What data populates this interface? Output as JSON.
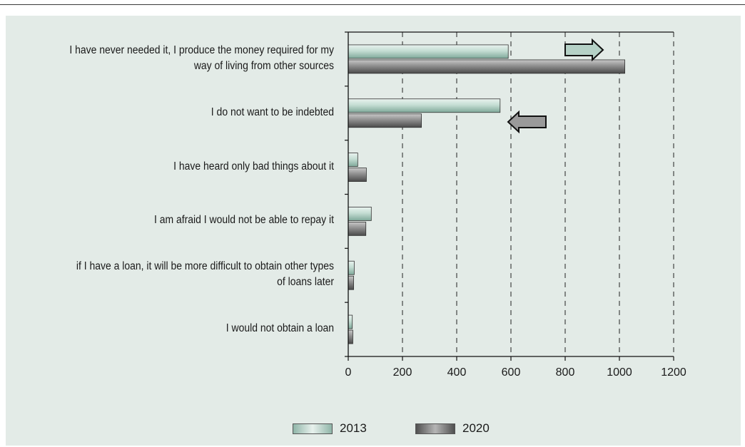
{
  "chart_data": {
    "type": "bar",
    "orientation": "horizontal",
    "categories": [
      "I have never needed it, I produce the money required for my way of living from other sources",
      "I do not want to be indebted",
      "I have heard only bad things about it",
      "I am afraid I would not be able to repay it",
      "if I have a loan, it will be more difficult to obtain other types of loans later",
      "I would not obtain a loan"
    ],
    "category_lines": [
      [
        "I have never needed it, I produce the money required for my",
        "way of living from other sources"
      ],
      [
        "I do not want to be indebted"
      ],
      [
        "I have heard only bad things about it"
      ],
      [
        "I am afraid I would not be able to repay it"
      ],
      [
        "if I have a loan, it will be more difficult to obtain other types",
        "of loans later"
      ],
      [
        "I would not obtain a loan"
      ]
    ],
    "series": [
      {
        "name": "2013",
        "values": [
          590,
          560,
          35,
          85,
          22,
          15
        ],
        "color": "#a9c9bd"
      },
      {
        "name": "2020",
        "values": [
          1020,
          270,
          67,
          65,
          20,
          17
        ],
        "color": "#8a8a8a"
      }
    ],
    "xticks": [
      0,
      200,
      400,
      600,
      800,
      1000,
      1200
    ],
    "xlim": [
      0,
      1200
    ],
    "grid": "vertical dashed",
    "legend_position": "bottom",
    "annotations": [
      {
        "type": "arrow-right",
        "category_index": 0,
        "color": "#b5d1c6"
      },
      {
        "type": "arrow-left",
        "category_index": 1,
        "color": "#9a9a9a"
      }
    ]
  },
  "legend": {
    "label_2013": "2013",
    "label_2020": "2020"
  }
}
